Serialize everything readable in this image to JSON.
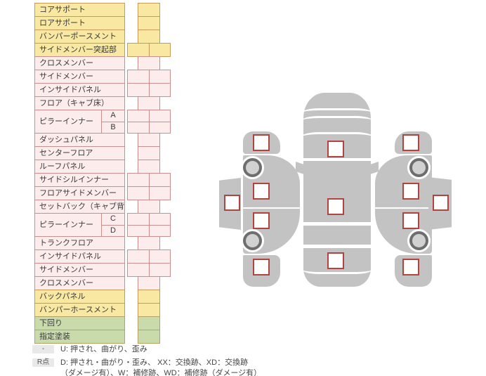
{
  "colors": {
    "yellow_fill": "#f8e8a2",
    "yellow_border": "#c69a58",
    "pink_fill": "#fcecec",
    "pink_border": "#c98f8f",
    "green_fill": "#c9dbaa",
    "green_border": "#b6a264",
    "body_gray": "#c3c3c3",
    "wheel_dark": "#6e6e6e",
    "wheel_inner": "#d1d1d1",
    "marker_fill": "#ffffff",
    "marker_border": "#b2433e",
    "badge_bg": "#e9e9e9",
    "text": "#3a3a3a"
  },
  "parts_table": {
    "rows": [
      {
        "label": "コアサポート",
        "tone": "yellow",
        "cells": 1
      },
      {
        "label": "ロアサポート",
        "tone": "yellow",
        "cells": 1
      },
      {
        "label": "バンパーポースメント",
        "tone": "yellow",
        "cells": 1
      },
      {
        "label": "サイドメンバー突起部",
        "tone": "yellow",
        "cells": 2
      },
      {
        "label": "クロスメンバー",
        "tone": "pink",
        "cells": 1
      },
      {
        "label": "サイドメンバー",
        "tone": "pink",
        "cells": 2
      },
      {
        "label": "インサイドパネル",
        "tone": "pink",
        "cells": 2
      },
      {
        "label": "フロア（キャブ床）",
        "tone": "pink",
        "cells": 1
      },
      {
        "label": "ピラーインナー",
        "tone": "pink",
        "cells": 2,
        "subs": [
          "A",
          "B"
        ]
      },
      {
        "label": "ダッシュパネル",
        "tone": "pink",
        "cells": 1
      },
      {
        "label": "センターフロア",
        "tone": "pink",
        "cells": 1
      },
      {
        "label": "ルーフパネル",
        "tone": "pink",
        "cells": 1
      },
      {
        "label": "サイドシルインナー",
        "tone": "pink",
        "cells": 2
      },
      {
        "label": "フロアサイドメンバー",
        "tone": "pink",
        "cells": 2
      },
      {
        "label": "セットバック（キャブ背）",
        "tone": "pink",
        "cells": 1
      },
      {
        "label": "ピラーインナー",
        "tone": "pink",
        "cells": 2,
        "subs": [
          "C",
          "D"
        ]
      },
      {
        "label": "トランクフロア",
        "tone": "pink",
        "cells": 1
      },
      {
        "label": "インサイドパネル",
        "tone": "pink",
        "cells": 2
      },
      {
        "label": "サイドメンバー",
        "tone": "pink",
        "cells": 2
      },
      {
        "label": "クロスメンバー",
        "tone": "pink",
        "cells": 1
      },
      {
        "label": "バックパネル",
        "tone": "yellow",
        "cells": 1
      },
      {
        "label": "バンパーホースメント",
        "tone": "yellow",
        "cells": 1
      },
      {
        "label": "下回り",
        "tone": "green",
        "cells": 1
      },
      {
        "label": "指定塗装",
        "tone": "green",
        "cells": 1
      }
    ]
  },
  "legend": {
    "items": [
      {
        "badge": "-",
        "lines": [
          "U: 押され、曲がり、歪み"
        ]
      },
      {
        "badge": "R点",
        "lines": [
          "D: 押され・曲がり・歪み、 XX：交換跡、XD：交換跡",
          "（ダメージ有）、W：補修跡、WD：補修跡（ダメージ有）"
        ]
      }
    ]
  },
  "diagram": {
    "views": [
      {
        "name": "left-side-view",
        "markers": [
          "side-sill",
          "front-fender",
          "front-door",
          "rear-door",
          "rear-fender"
        ],
        "wheels": [
          "front",
          "rear"
        ]
      },
      {
        "name": "top-view",
        "markers": [
          "cowl",
          "roof",
          "rear-window"
        ]
      },
      {
        "name": "right-side-view",
        "markers": [
          "front-fender",
          "front-door",
          "rear-door",
          "rear-fender",
          "side-sill"
        ],
        "wheels": [
          "front",
          "rear"
        ]
      }
    ]
  }
}
